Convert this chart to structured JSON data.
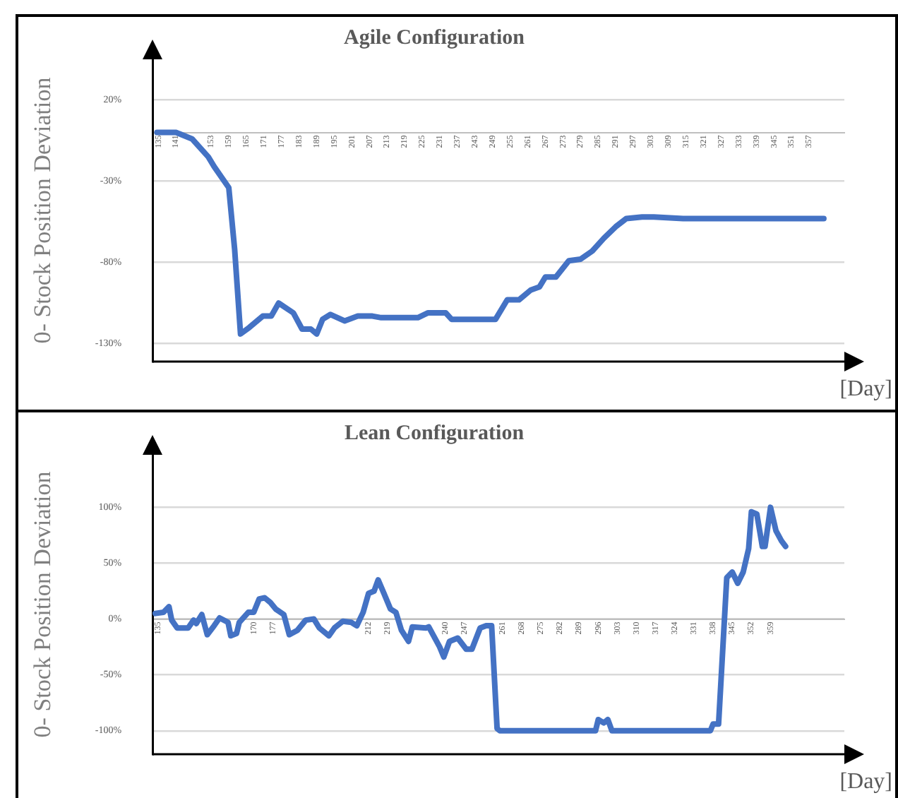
{
  "chart_data": [
    {
      "type": "line",
      "title": "Agile Configuration",
      "xlabel": "[Day]",
      "ylabel": "0- Stock Position Deviation",
      "color": "#4472c4",
      "grid": "y",
      "marker": "none",
      "x": [
        134.5,
        141,
        146.5,
        152,
        154,
        159,
        161,
        163,
        166,
        170.6,
        173.5,
        176,
        181,
        184,
        187,
        189,
        191,
        193.7,
        198.5,
        203,
        208,
        211,
        223.5,
        227,
        233,
        235,
        250,
        254,
        258,
        262,
        265,
        267,
        270.6,
        275,
        279,
        283,
        287,
        291,
        294.6,
        300,
        304,
        314,
        323.5,
        362
      ],
      "values": [
        0,
        0,
        -4,
        -15,
        -21,
        -34,
        -72,
        -124,
        -120,
        -113,
        -113,
        -105,
        -111,
        -121,
        -121,
        -124,
        -115,
        -112,
        -116,
        -113,
        -113,
        -114,
        -114,
        -111,
        -111,
        -115,
        -115,
        -103,
        -103,
        -97,
        -95,
        -89,
        -89,
        -79,
        -78,
        -73,
        -65,
        -58,
        -53,
        -52,
        -52,
        -53,
        -53,
        -53
      ],
      "xlim": [
        133,
        369
      ],
      "xticks": [
        135,
        141,
        153,
        159,
        165,
        171,
        177,
        183,
        189,
        195,
        201,
        207,
        213,
        219,
        225,
        231,
        237,
        243,
        249,
        255,
        261,
        267,
        273,
        279,
        285,
        291,
        297,
        303,
        309,
        315,
        321,
        327,
        333,
        339,
        345,
        351,
        357
      ],
      "ylim": [
        -141,
        45
      ],
      "yticks": [
        {
          "value": 20,
          "label": "20%"
        },
        {
          "value": -30,
          "label": "-30%"
        },
        {
          "value": -80,
          "label": "-80%"
        },
        {
          "value": -130,
          "label": "-130%"
        }
      ]
    },
    {
      "type": "line",
      "title": "Lean Configuration",
      "xlabel": "[Day]",
      "ylabel": "0- Stock Position Deviation",
      "color": "#4472c4",
      "grid": "y",
      "marker": "none",
      "x": [
        134,
        137,
        139,
        140,
        142,
        146,
        148,
        149,
        151,
        153,
        155.5,
        157.5,
        160.6,
        161.6,
        163.7,
        164.7,
        168,
        170,
        172,
        174,
        176,
        178,
        181,
        183,
        186,
        189,
        192,
        194,
        197.5,
        199.5,
        202.6,
        205.7,
        207.7,
        210,
        212,
        214,
        215.5,
        217.6,
        220,
        222,
        224,
        226.6,
        228,
        233,
        234,
        238,
        239.5,
        241.6,
        244.6,
        247.7,
        249.8,
        252.8,
        255,
        257,
        259,
        260,
        295,
        296,
        298,
        299.5,
        301,
        337,
        338,
        340,
        343,
        345,
        347,
        349,
        351,
        352,
        354,
        356,
        357,
        359,
        361,
        363,
        364.5
      ],
      "values": [
        5,
        6,
        11,
        -1,
        -8,
        -8,
        -1,
        -4,
        4,
        -14,
        -6,
        1,
        -3,
        -15,
        -13,
        -3,
        6,
        6,
        18,
        19,
        15,
        9,
        4,
        -14,
        -10,
        -1,
        0,
        -8,
        -15,
        -8,
        -2,
        -3,
        -6,
        6,
        23,
        25,
        35,
        23,
        9,
        6,
        -10,
        -20,
        -7,
        -8,
        -7,
        -25,
        -34,
        -20,
        -17,
        -27,
        -27,
        -8,
        -6,
        -6,
        -98,
        -100,
        -100,
        -90,
        -93,
        -90,
        -100,
        -100,
        -94,
        -94,
        37,
        42,
        32,
        42,
        63,
        96,
        94,
        65,
        65,
        100,
        79,
        70,
        65
      ],
      "xlim": [
        133,
        386
      ],
      "xticks": [
        135,
        170,
        177,
        212,
        219,
        240,
        247,
        261,
        268,
        275,
        282,
        289,
        296,
        303,
        310,
        317,
        324,
        331,
        338,
        345,
        352,
        359
      ],
      "ylim": [
        -121,
        147
      ],
      "yticks": [
        {
          "value": 100,
          "label": "100%"
        },
        {
          "value": 50,
          "label": "50%"
        },
        {
          "value": 0,
          "label": "0%"
        },
        {
          "value": -50,
          "label": "-50%"
        },
        {
          "value": -100,
          "label": "-100%"
        }
      ]
    }
  ]
}
